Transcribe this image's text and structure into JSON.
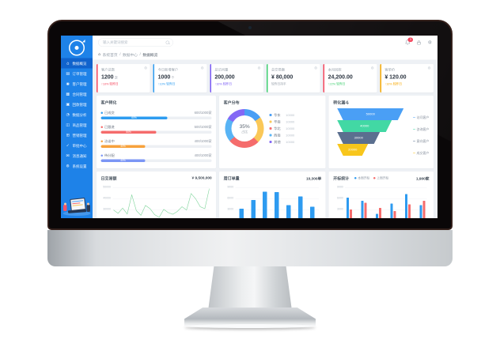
{
  "sidebar": {
    "items": [
      {
        "label": "数据概览",
        "icon": "home",
        "glyph": "⌂",
        "active": true
      },
      {
        "label": "订单管理",
        "icon": "orders",
        "glyph": "▤",
        "active": false
      },
      {
        "label": "客户管理",
        "icon": "customers",
        "glyph": "◉",
        "active": false
      },
      {
        "label": "合同管理",
        "icon": "contracts",
        "glyph": "▦",
        "active": false
      },
      {
        "label": "回款管理",
        "icon": "payments",
        "glyph": "▣",
        "active": false
      },
      {
        "label": "数据分析",
        "icon": "analytics",
        "glyph": "◔",
        "active": false
      },
      {
        "label": "商品管理",
        "icon": "products",
        "glyph": "◫",
        "active": false
      },
      {
        "label": "营销管理",
        "icon": "marketing",
        "glyph": "⊞",
        "active": false
      },
      {
        "label": "审批中心",
        "icon": "approvals",
        "glyph": "✓",
        "active": false
      },
      {
        "label": "消息通知",
        "icon": "messages",
        "glyph": "✉",
        "active": false
      },
      {
        "label": "系统设置",
        "icon": "settings",
        "glyph": "⚙",
        "active": false
      }
    ]
  },
  "header": {
    "search_placeholder": "输入关键词搜索",
    "notification_count": "3"
  },
  "breadcrumb": {
    "separator": "/",
    "items": [
      "系统首页",
      "数据中心",
      "数据概览"
    ]
  },
  "stat_cards": [
    {
      "label": "客户总数",
      "value": "1200",
      "unit": "次",
      "sub": "↑10% 较昨日",
      "accent": "#f5455c",
      "sub_color": "#f5455c"
    },
    {
      "label": "今日新增客户",
      "value": "1000",
      "unit": "个",
      "sub": "↑10% 较昨日",
      "accent": "#2d9cf0",
      "sub_color": "#2d9cf0"
    },
    {
      "label": "总访问量",
      "value": "200,000",
      "unit": "",
      "sub": "↑10% 较昨日",
      "accent": "#7a5af5",
      "sub_color": "#7a5af5"
    },
    {
      "label": "总交易额",
      "value": "¥ 80,000",
      "unit": "",
      "sub": "较昨日持平",
      "accent": "#3ecf6f",
      "sub_color": "#9aa3ad"
    },
    {
      "label": "本月回款",
      "value": "24,200.00",
      "unit": "",
      "sub": "↑22% 较昨日",
      "accent": "#f5455c",
      "sub_color": "#3ecf6f"
    },
    {
      "label": "客单价",
      "value": "¥ 120.00",
      "unit": "",
      "sub": "↑10% 较昨日",
      "accent": "#f7a800",
      "sub_color": "#f7a800"
    }
  ],
  "conversion": {
    "title": "客户转化",
    "rows": [
      {
        "label": "已成交",
        "value": "600/1000家",
        "pct": 60,
        "color": "#2d9cf0"
      },
      {
        "label": "已跟进",
        "value": "500/1000家",
        "pct": 50,
        "color": "#f56c6c"
      },
      {
        "label": "洽谈中",
        "value": "400/1000家",
        "pct": 40,
        "color": "#f7a23c"
      },
      {
        "label": "待分配",
        "value": "400/1000家",
        "pct": 40,
        "color": "#7b96f5"
      }
    ]
  },
  "chart_data": [
    {
      "id": "customer_distribution",
      "type": "pie",
      "title": "客户分布",
      "center_value": "35%",
      "center_label": "占比",
      "legend_position": "right",
      "series": [
        {
          "name": "华东",
          "value": 10000,
          "color": "#4a9ff5",
          "deg": 75
        },
        {
          "name": "华南",
          "value": 10000,
          "color": "#fac858",
          "deg": 80
        },
        {
          "name": "华北",
          "value": 10000,
          "color": "#f56c6c",
          "deg": 95
        },
        {
          "name": "西南",
          "value": 10000,
          "color": "#58b4f5",
          "deg": 70
        },
        {
          "name": "其他",
          "value": 10000,
          "color": "#8468f5",
          "deg": 40
        }
      ]
    },
    {
      "id": "conversion_funnel",
      "type": "funnel",
      "title": "转化漏斗",
      "layers": [
        {
          "label": "访问客户",
          "value": "50000",
          "color": "#4a9ff5"
        },
        {
          "label": "咨询客户",
          "value": "40000",
          "color": "#42d8a4"
        },
        {
          "label": "意向客户",
          "value": "30000",
          "color": "#5b6f8f"
        },
        {
          "label": "成交客户",
          "value": "20000",
          "color": "#f8c61c"
        }
      ]
    },
    {
      "id": "daily_transactions",
      "type": "line",
      "title": "日交易额",
      "total": "¥ 9,500,000",
      "yticks": [
        "50000",
        "40000",
        "30000"
      ],
      "ylim": [
        25000,
        52000
      ],
      "color": "#7ed49a",
      "grid": true,
      "values": [
        33000,
        30500,
        34500,
        30000,
        44500,
        32500,
        29000,
        36500,
        34000,
        29500,
        27500,
        33500,
        31000,
        29800,
        32000,
        35500,
        33000,
        45500,
        41500,
        35500,
        34000,
        49500
      ]
    },
    {
      "id": "weekly_orders",
      "type": "bar",
      "title": "周订单量",
      "total": "10,300单",
      "yticks": [
        "9000",
        "6000",
        "3000"
      ],
      "ylim": [
        0,
        9000
      ],
      "color": "#2e9bf0",
      "grid": true,
      "values": [
        3200,
        5600,
        7800,
        7700,
        4200,
        6500,
        3800
      ]
    },
    {
      "id": "bid_stats",
      "type": "grouped-bar",
      "title": "开标统计",
      "total": "1,900家",
      "yticks": [
        "9000",
        "6000",
        "3000"
      ],
      "ylim": [
        0,
        9000
      ],
      "grid": true,
      "series": [
        {
          "name": "本周开标",
          "color": "#2e9bf0",
          "values": [
            6200,
            5400,
            1800,
            4600,
            7200,
            4200
          ]
        },
        {
          "name": "上周开标",
          "color": "#f56c6c",
          "values": [
            3000,
            4800,
            3400,
            2600,
            4400,
            5400
          ]
        }
      ]
    }
  ]
}
